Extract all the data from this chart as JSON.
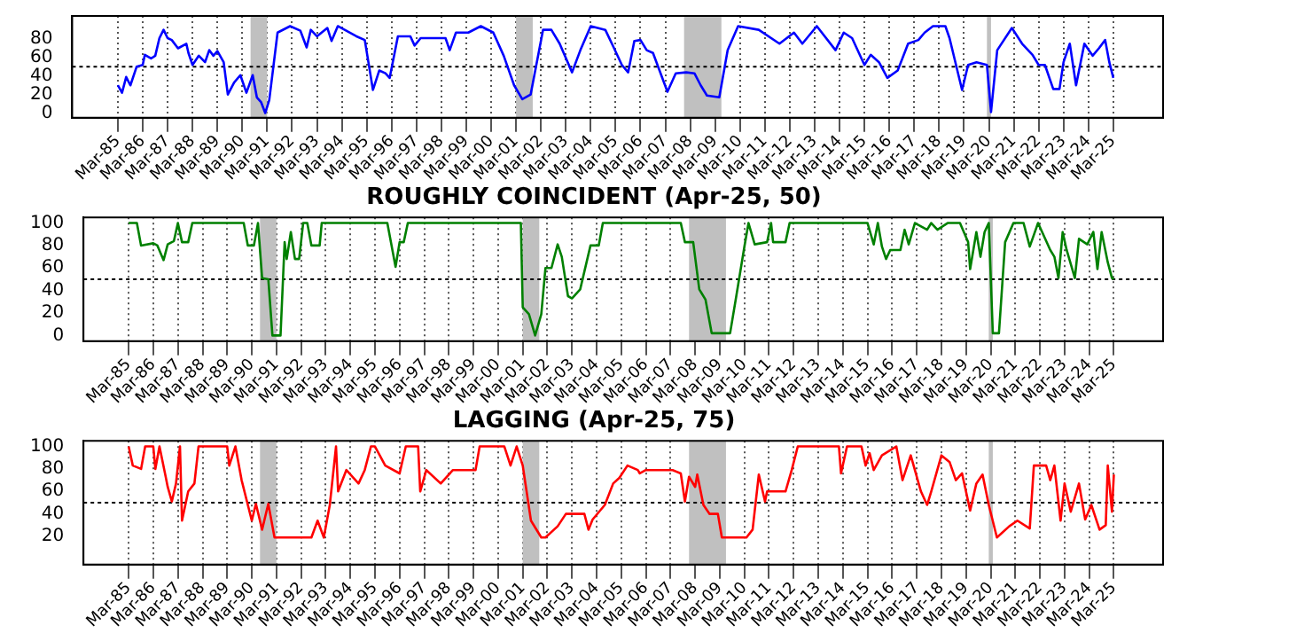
{
  "chart_data": [
    {
      "type": "line",
      "xlim": [
        "1983-05",
        "2027-03"
      ],
      "ylim": [
        -5,
        105
      ],
      "yticks": [
        0,
        20,
        40,
        60,
        80
      ],
      "grid": "x",
      "xticks": [
        {
          "value": "1985-03",
          "label": "Mar-85"
        },
        {
          "value": "1986-03",
          "label": "Mar-86"
        },
        {
          "value": "1987-03",
          "label": "Mar-87"
        },
        {
          "value": "1988-03",
          "label": "Mar-88"
        },
        {
          "value": "1989-03",
          "label": "Mar-89"
        },
        {
          "value": "1990-03",
          "label": "Mar-90"
        },
        {
          "value": "1991-03",
          "label": "Mar-91"
        },
        {
          "value": "1992-03",
          "label": "Mar-92"
        },
        {
          "value": "1993-03",
          "label": "Mar-93"
        },
        {
          "value": "1994-03",
          "label": "Mar-94"
        },
        {
          "value": "1995-03",
          "label": "Mar-95"
        },
        {
          "value": "1996-03",
          "label": "Mar-96"
        },
        {
          "value": "1997-03",
          "label": "Mar-97"
        },
        {
          "value": "1998-03",
          "label": "Mar-98"
        },
        {
          "value": "1999-03",
          "label": "Mar-99"
        },
        {
          "value": "2000-03",
          "label": "Mar-00"
        },
        {
          "value": "2001-03",
          "label": "Mar-01"
        },
        {
          "value": "2002-03",
          "label": "Mar-02"
        },
        {
          "value": "2003-03",
          "label": "Mar-03"
        },
        {
          "value": "2004-03",
          "label": "Mar-04"
        },
        {
          "value": "2005-03",
          "label": "Mar-05"
        },
        {
          "value": "2006-03",
          "label": "Mar-06"
        },
        {
          "value": "2007-03",
          "label": "Mar-07"
        },
        {
          "value": "2008-03",
          "label": "Mar-08"
        },
        {
          "value": "2009-03",
          "label": "Mar-09"
        },
        {
          "value": "2010-03",
          "label": "Mar-10"
        },
        {
          "value": "2011-03",
          "label": "Mar-11"
        },
        {
          "value": "2012-03",
          "label": "Mar-12"
        },
        {
          "value": "2013-03",
          "label": "Mar-13"
        },
        {
          "value": "2014-03",
          "label": "Mar-14"
        },
        {
          "value": "2015-03",
          "label": "Mar-15"
        },
        {
          "value": "2016-03",
          "label": "Mar-16"
        },
        {
          "value": "2017-03",
          "label": "Mar-17"
        },
        {
          "value": "2018-03",
          "label": "Mar-18"
        },
        {
          "value": "2019-03",
          "label": "Mar-19"
        },
        {
          "value": "2020-03",
          "label": "Mar-20"
        },
        {
          "value": "2021-03",
          "label": "Mar-21"
        },
        {
          "value": "2022-03",
          "label": "Mar-22"
        },
        {
          "value": "2023-03",
          "label": "Mar-23"
        },
        {
          "value": "2024-03",
          "label": "Mar-24"
        },
        {
          "value": "2025-03",
          "label": "Mar-25"
        }
      ],
      "bands": [
        {
          "axis": "x",
          "from": "1990-07",
          "to": "1991-03",
          "color": "#c0c0c0"
        },
        {
          "axis": "x",
          "from": "2001-03",
          "to": "2001-11",
          "color": "#c0c0c0"
        },
        {
          "axis": "x",
          "from": "2007-12",
          "to": "2009-06",
          "color": "#c0c0c0"
        },
        {
          "axis": "x",
          "from": "2020-02",
          "to": "2020-04",
          "color": "#c0c0c0"
        }
      ],
      "ref_lines": [
        {
          "axis": "y",
          "value": 50,
          "color": "#000000",
          "line_style": "dotted"
        }
      ],
      "series": [
        {
          "color": "#0000ff",
          "x": [
            "1985-03",
            "1985-05",
            "1985-07",
            "1985-09",
            "1985-12",
            "1986-03",
            "1986-04",
            "1986-07",
            "1986-09",
            "1986-11",
            "1987-01",
            "1987-03",
            "1987-05",
            "1987-08",
            "1987-12",
            "1988-01",
            "1988-03",
            "1988-06",
            "1988-09",
            "1988-11",
            "1989-01",
            "1989-03",
            "1989-06",
            "1989-08",
            "1989-11",
            "1990-02",
            "1990-05",
            "1990-08",
            "1990-10",
            "1990-12",
            "1991-02",
            "1991-04",
            "1991-08",
            "1992-02",
            "1992-07",
            "1992-10",
            "1992-12",
            "1993-03",
            "1993-08",
            "1993-10",
            "1994-01",
            "1994-10",
            "1995-02",
            "1995-06",
            "1995-09",
            "1995-12",
            "1996-02",
            "1996-06",
            "1996-12",
            "1997-02",
            "1997-05",
            "1997-11",
            "1998-05",
            "1998-07",
            "1998-10",
            "1999-04",
            "1999-10",
            "2000-04",
            "2000-09",
            "2001-02",
            "2001-06",
            "2001-10",
            "2002-04",
            "2002-08",
            "2002-12",
            "2003-06",
            "2003-10",
            "2004-03",
            "2004-10",
            "2005-02",
            "2005-06",
            "2005-09",
            "2005-12",
            "2006-03",
            "2006-06",
            "2006-09",
            "2007-04",
            "2007-08",
            "2008-01",
            "2008-05",
            "2008-08",
            "2008-11",
            "2009-05",
            "2009-09",
            "2010-02",
            "2010-12",
            "2011-10",
            "2012-05",
            "2012-09",
            "2013-04",
            "2014-01",
            "2014-05",
            "2014-09",
            "2015-03",
            "2015-06",
            "2015-10",
            "2016-02",
            "2016-07",
            "2016-12",
            "2017-05",
            "2017-08",
            "2017-12",
            "2018-06",
            "2018-08",
            "2019-02",
            "2019-05",
            "2019-09",
            "2020-02",
            "2020-04",
            "2020-07",
            "2021-02",
            "2021-07",
            "2021-12",
            "2022-03",
            "2022-06",
            "2022-10",
            "2023-01",
            "2023-03",
            "2023-06",
            "2023-09",
            "2024-01",
            "2024-05",
            "2024-08",
            "2024-11",
            "2025-01",
            "2025-03"
          ],
          "values": [
            30,
            22,
            39,
            30,
            50,
            52,
            63,
            59,
            62,
            81,
            90,
            81,
            79,
            70,
            75,
            65,
            52,
            62,
            55,
            68,
            62,
            67,
            55,
            20,
            33,
            41,
            22,
            41,
            17,
            12,
            0,
            14,
            87,
            94,
            89,
            71,
            90,
            83,
            92,
            78,
            94,
            83,
            79,
            25,
            46,
            43,
            38,
            83,
            83,
            73,
            81,
            81,
            81,
            68,
            87,
            87,
            94,
            87,
            62,
            30,
            15,
            20,
            90,
            90,
            75,
            44,
            68,
            94,
            90,
            71,
            52,
            44,
            78,
            79,
            68,
            65,
            23,
            43,
            44,
            43,
            30,
            19,
            17,
            68,
            94,
            90,
            75,
            87,
            75,
            94,
            68,
            87,
            81,
            52,
            63,
            55,
            38,
            46,
            75,
            79,
            87,
            94,
            94,
            81,
            25,
            52,
            55,
            52,
            1,
            68,
            92,
            75,
            63,
            52,
            52,
            26,
            26,
            55,
            75,
            30,
            75,
            62,
            70,
            79,
            55,
            38
          ]
        }
      ]
    },
    {
      "type": "line",
      "title": "ROUGHLY COINCIDENT (Apr-25, 50)",
      "xlim": [
        "1983-05",
        "2027-03"
      ],
      "ylim": [
        -5,
        105
      ],
      "yticks": [
        0,
        20,
        40,
        60,
        80,
        100
      ],
      "grid": "x",
      "xticks": [
        {
          "value": "1985-03",
          "label": "Mar-85"
        },
        {
          "value": "1986-03",
          "label": "Mar-86"
        },
        {
          "value": "1987-03",
          "label": "Mar-87"
        },
        {
          "value": "1988-03",
          "label": "Mar-88"
        },
        {
          "value": "1989-03",
          "label": "Mar-89"
        },
        {
          "value": "1990-03",
          "label": "Mar-90"
        },
        {
          "value": "1991-03",
          "label": "Mar-91"
        },
        {
          "value": "1992-03",
          "label": "Mar-92"
        },
        {
          "value": "1993-03",
          "label": "Mar-93"
        },
        {
          "value": "1994-03",
          "label": "Mar-94"
        },
        {
          "value": "1995-03",
          "label": "Mar-95"
        },
        {
          "value": "1996-03",
          "label": "Mar-96"
        },
        {
          "value": "1997-03",
          "label": "Mar-97"
        },
        {
          "value": "1998-03",
          "label": "Mar-98"
        },
        {
          "value": "1999-03",
          "label": "Mar-99"
        },
        {
          "value": "2000-03",
          "label": "Mar-00"
        },
        {
          "value": "2001-03",
          "label": "Mar-01"
        },
        {
          "value": "2002-03",
          "label": "Mar-02"
        },
        {
          "value": "2003-03",
          "label": "Mar-03"
        },
        {
          "value": "2004-03",
          "label": "Mar-04"
        },
        {
          "value": "2005-03",
          "label": "Mar-05"
        },
        {
          "value": "2006-03",
          "label": "Mar-06"
        },
        {
          "value": "2007-03",
          "label": "Mar-07"
        },
        {
          "value": "2008-03",
          "label": "Mar-08"
        },
        {
          "value": "2009-03",
          "label": "Mar-09"
        },
        {
          "value": "2010-03",
          "label": "Mar-10"
        },
        {
          "value": "2011-03",
          "label": "Mar-11"
        },
        {
          "value": "2012-03",
          "label": "Mar-12"
        },
        {
          "value": "2013-03",
          "label": "Mar-13"
        },
        {
          "value": "2014-03",
          "label": "Mar-14"
        },
        {
          "value": "2015-03",
          "label": "Mar-15"
        },
        {
          "value": "2016-03",
          "label": "Mar-16"
        },
        {
          "value": "2017-03",
          "label": "Mar-17"
        },
        {
          "value": "2018-03",
          "label": "Mar-18"
        },
        {
          "value": "2019-03",
          "label": "Mar-19"
        },
        {
          "value": "2020-03",
          "label": "Mar-20"
        },
        {
          "value": "2021-03",
          "label": "Mar-21"
        },
        {
          "value": "2022-03",
          "label": "Mar-22"
        },
        {
          "value": "2023-03",
          "label": "Mar-23"
        },
        {
          "value": "2024-03",
          "label": "Mar-24"
        },
        {
          "value": "2025-03",
          "label": "Mar-25"
        }
      ],
      "bands": [
        {
          "axis": "x",
          "from": "1990-07",
          "to": "1991-03",
          "color": "#c0c0c0"
        },
        {
          "axis": "x",
          "from": "2001-03",
          "to": "2001-11",
          "color": "#c0c0c0"
        },
        {
          "axis": "x",
          "from": "2007-12",
          "to": "2009-06",
          "color": "#c0c0c0"
        },
        {
          "axis": "x",
          "from": "2020-02",
          "to": "2020-04",
          "color": "#c0c0c0"
        }
      ],
      "ref_lines": [
        {
          "axis": "y",
          "value": 50,
          "color": "#000000",
          "line_style": "dotted"
        }
      ],
      "series": [
        {
          "color": "#008000",
          "x": [
            "1985-03",
            "1985-07",
            "1985-09",
            "1986-03",
            "1986-05",
            "1986-08",
            "1986-10",
            "1987-01",
            "1987-03",
            "1987-05",
            "1987-08",
            "1987-10",
            "1989-11",
            "1990-01",
            "1990-04",
            "1990-06",
            "1990-08",
            "1990-11",
            "1991-01",
            "1991-05",
            "1991-07",
            "1991-08",
            "1991-10",
            "1991-12",
            "1992-02",
            "1992-04",
            "1992-06",
            "1992-08",
            "1992-12",
            "1993-01",
            "1995-09",
            "1996-01",
            "1996-03",
            "1996-05",
            "1996-07",
            "2001-02",
            "2001-03",
            "2001-06",
            "2001-09",
            "2001-12",
            "2002-02",
            "2002-05",
            "2002-08",
            "2002-10",
            "2003-01",
            "2003-03",
            "2003-07",
            "2003-12",
            "2004-04",
            "2004-06",
            "2007-08",
            "2007-10",
            "2008-02",
            "2008-05",
            "2008-06",
            "2008-08",
            "2008-11",
            "2009-08",
            "2009-11",
            "2010-03",
            "2010-05",
            "2010-08",
            "2011-02",
            "2011-04",
            "2011-05",
            "2011-11",
            "2012-01",
            "2015-03",
            "2015-06",
            "2015-08",
            "2015-10",
            "2015-12",
            "2016-02",
            "2016-07",
            "2016-09",
            "2016-11",
            "2017-02",
            "2017-08",
            "2017-10",
            "2018-01",
            "2018-06",
            "2018-12",
            "2019-04",
            "2019-05",
            "2019-08",
            "2019-10",
            "2019-12",
            "2020-02",
            "2020-04",
            "2020-07",
            "2020-10",
            "2021-02",
            "2021-07",
            "2021-10",
            "2022-02",
            "2022-08",
            "2022-10",
            "2022-12",
            "2023-02",
            "2023-04",
            "2023-08",
            "2023-10",
            "2024-02",
            "2024-05",
            "2024-07",
            "2024-09",
            "2024-12",
            "2025-02",
            "2025-03"
          ],
          "values": [
            100,
            100,
            80,
            82,
            80,
            67,
            81,
            84,
            100,
            83,
            83,
            100,
            100,
            80,
            80,
            100,
            51,
            50,
            0,
            0,
            83,
            68,
            92,
            68,
            68,
            100,
            100,
            80,
            80,
            100,
            100,
            61,
            83,
            83,
            100,
            100,
            25,
            19,
            0,
            19,
            60,
            60,
            81,
            70,
            35,
            33,
            41,
            80,
            80,
            100,
            100,
            83,
            83,
            41,
            38,
            32,
            2,
            2,
            35,
            79,
            100,
            81,
            83,
            100,
            83,
            83,
            100,
            100,
            81,
            100,
            79,
            68,
            76,
            76,
            94,
            81,
            100,
            94,
            100,
            94,
            100,
            100,
            83,
            59,
            92,
            70,
            92,
            100,
            2,
            2,
            83,
            100,
            100,
            79,
            100,
            76,
            70,
            51,
            92,
            76,
            51,
            86,
            81,
            92,
            59,
            92,
            65,
            51,
            50
          ]
        }
      ]
    },
    {
      "type": "line",
      "title": "LAGGING (Apr-25, 75)",
      "xlim": [
        "1983-05",
        "2027-03"
      ],
      "ylim": [
        -5,
        105
      ],
      "yticks": [
        20,
        40,
        60,
        80,
        100
      ],
      "grid": "x",
      "xticks": [
        {
          "value": "1985-03",
          "label": "Mar-85"
        },
        {
          "value": "1986-03",
          "label": "Mar-86"
        },
        {
          "value": "1987-03",
          "label": "Mar-87"
        },
        {
          "value": "1988-03",
          "label": "Mar-88"
        },
        {
          "value": "1989-03",
          "label": "Mar-89"
        },
        {
          "value": "1990-03",
          "label": "Mar-90"
        },
        {
          "value": "1991-03",
          "label": "Mar-91"
        },
        {
          "value": "1992-03",
          "label": "Mar-92"
        },
        {
          "value": "1993-03",
          "label": "Mar-93"
        },
        {
          "value": "1994-03",
          "label": "Mar-94"
        },
        {
          "value": "1995-03",
          "label": "Mar-95"
        },
        {
          "value": "1996-03",
          "label": "Mar-96"
        },
        {
          "value": "1997-03",
          "label": "Mar-97"
        },
        {
          "value": "1998-03",
          "label": "Mar-98"
        },
        {
          "value": "1999-03",
          "label": "Mar-99"
        },
        {
          "value": "2000-03",
          "label": "Mar-00"
        },
        {
          "value": "2001-03",
          "label": "Mar-01"
        },
        {
          "value": "2002-03",
          "label": "Mar-02"
        },
        {
          "value": "2003-03",
          "label": "Mar-03"
        },
        {
          "value": "2004-03",
          "label": "Mar-04"
        },
        {
          "value": "2005-03",
          "label": "Mar-05"
        },
        {
          "value": "2006-03",
          "label": "Mar-06"
        },
        {
          "value": "2007-03",
          "label": "Mar-07"
        },
        {
          "value": "2008-03",
          "label": "Mar-08"
        },
        {
          "value": "2009-03",
          "label": "Mar-09"
        },
        {
          "value": "2010-03",
          "label": "Mar-10"
        },
        {
          "value": "2011-03",
          "label": "Mar-11"
        },
        {
          "value": "2012-03",
          "label": "Mar-12"
        },
        {
          "value": "2013-03",
          "label": "Mar-13"
        },
        {
          "value": "2014-03",
          "label": "Mar-14"
        },
        {
          "value": "2015-03",
          "label": "Mar-15"
        },
        {
          "value": "2016-03",
          "label": "Mar-16"
        },
        {
          "value": "2017-03",
          "label": "Mar-17"
        },
        {
          "value": "2018-03",
          "label": "Mar-18"
        },
        {
          "value": "2019-03",
          "label": "Mar-19"
        },
        {
          "value": "2020-03",
          "label": "Mar-20"
        },
        {
          "value": "2021-03",
          "label": "Mar-21"
        },
        {
          "value": "2022-03",
          "label": "Mar-22"
        },
        {
          "value": "2023-03",
          "label": "Mar-23"
        },
        {
          "value": "2024-03",
          "label": "Mar-24"
        },
        {
          "value": "2025-03",
          "label": "Mar-25"
        }
      ],
      "bands": [
        {
          "axis": "x",
          "from": "1990-07",
          "to": "1991-03",
          "color": "#c0c0c0"
        },
        {
          "axis": "x",
          "from": "2001-03",
          "to": "2001-11",
          "color": "#c0c0c0"
        },
        {
          "axis": "x",
          "from": "2007-12",
          "to": "2009-06",
          "color": "#c0c0c0"
        },
        {
          "axis": "x",
          "from": "2020-02",
          "to": "2020-04",
          "color": "#c0c0c0"
        }
      ],
      "ref_lines": [
        {
          "axis": "y",
          "value": 50,
          "color": "#000000",
          "line_style": "dotted"
        }
      ],
      "series": [
        {
          "color": "#ff0000",
          "x": [
            "1985-03",
            "1985-05",
            "1985-09",
            "1985-11",
            "1986-03",
            "1986-04",
            "1986-06",
            "1986-09",
            "1986-10",
            "1986-12",
            "1987-02",
            "1987-04",
            "1987-05",
            "1987-08",
            "1987-11",
            "1988-01",
            "1989-03",
            "1989-04",
            "1989-07",
            "1989-10",
            "1990-03",
            "1990-05",
            "1990-08",
            "1990-11",
            "1991-02",
            "1991-09",
            "1992-08",
            "1992-11",
            "1993-02",
            "1993-05",
            "1993-08",
            "1993-09",
            "1994-01",
            "1994-07",
            "1994-10",
            "1995-01",
            "1995-03",
            "1995-08",
            "1996-03",
            "1996-06",
            "1996-12",
            "1997-01",
            "1997-04",
            "1997-11",
            "1998-05",
            "1999-04",
            "1999-06",
            "2000-06",
            "2000-09",
            "2000-12",
            "2001-03",
            "2001-07",
            "2001-12",
            "2002-02",
            "2002-08",
            "2002-12",
            "2003-09",
            "2003-11",
            "2004-01",
            "2004-07",
            "2004-11",
            "2005-02",
            "2005-06",
            "2005-11",
            "2005-12",
            "2006-03",
            "2007-04",
            "2007-08",
            "2007-10",
            "2007-12",
            "2008-03",
            "2008-04",
            "2008-07",
            "2008-10",
            "2009-02",
            "2009-04",
            "2010-04",
            "2010-07",
            "2010-10",
            "2011-01",
            "2011-02",
            "2011-11",
            "2012-02",
            "2012-05",
            "2014-01",
            "2014-02",
            "2014-05",
            "2014-12",
            "2015-02",
            "2015-04",
            "2015-06",
            "2015-10",
            "2016-05",
            "2016-08",
            "2016-12",
            "2017-05",
            "2017-08",
            "2017-10",
            "2018-03",
            "2018-07",
            "2018-10",
            "2019-01",
            "2019-05",
            "2019-08",
            "2019-11",
            "2020-02",
            "2020-06",
            "2020-12",
            "2021-04",
            "2021-10",
            "2021-12",
            "2022-06",
            "2022-08",
            "2022-10",
            "2023-01",
            "2023-03",
            "2023-06",
            "2023-10",
            "2024-01",
            "2024-04",
            "2024-08",
            "2024-11",
            "2024-12",
            "2025-02",
            "2025-03"
          ],
          "values": [
            100,
            83,
            80,
            100,
            100,
            80,
            100,
            73,
            64,
            51,
            67,
            100,
            34,
            60,
            67,
            100,
            100,
            83,
            100,
            70,
            34,
            49,
            26,
            49,
            19,
            19,
            19,
            34,
            19,
            48,
            100,
            60,
            79,
            67,
            79,
            100,
            100,
            83,
            76,
            100,
            100,
            60,
            79,
            67,
            79,
            79,
            100,
            100,
            83,
            100,
            83,
            34,
            19,
            19,
            29,
            40,
            40,
            26,
            35,
            48,
            67,
            72,
            83,
            79,
            76,
            79,
            79,
            76,
            51,
            73,
            64,
            75,
            48,
            40,
            40,
            19,
            19,
            26,
            75,
            51,
            60,
            60,
            79,
            100,
            100,
            76,
            100,
            100,
            83,
            94,
            79,
            92,
            100,
            70,
            92,
            60,
            48,
            60,
            92,
            86,
            70,
            76,
            43,
            67,
            75,
            48,
            19,
            29,
            34,
            27,
            83,
            83,
            70,
            83,
            34,
            67,
            42,
            67,
            35,
            48,
            26,
            30,
            83,
            42,
            75
          ]
        }
      ]
    }
  ]
}
